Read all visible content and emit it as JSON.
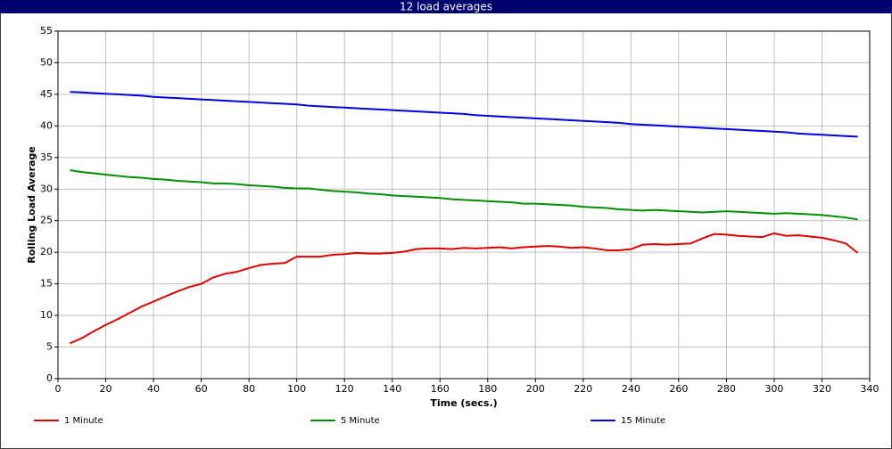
{
  "chart_data": {
    "type": "line",
    "title": "12 load averages",
    "x_label": "Time (secs.)",
    "y_label": "Rolling Load Average",
    "x": [
      5,
      10,
      15,
      20,
      25,
      30,
      35,
      40,
      45,
      50,
      55,
      60,
      65,
      70,
      75,
      80,
      85,
      90,
      95,
      100,
      105,
      110,
      115,
      120,
      125,
      130,
      135,
      140,
      145,
      150,
      155,
      160,
      165,
      170,
      175,
      180,
      185,
      190,
      195,
      200,
      205,
      210,
      215,
      220,
      225,
      230,
      235,
      240,
      245,
      250,
      255,
      260,
      265,
      270,
      275,
      280,
      285,
      290,
      295,
      300,
      305,
      310,
      315,
      320,
      325,
      330,
      335
    ],
    "series": [
      {
        "name": "1 Minute",
        "color": "#e00000",
        "values": [
          5.6,
          6.4,
          7.5,
          8.5,
          9.4,
          10.4,
          11.4,
          12.2,
          13.0,
          13.8,
          14.5,
          15.0,
          16.0,
          16.6,
          16.9,
          17.5,
          18.0,
          18.2,
          18.3,
          19.3,
          19.3,
          19.3,
          19.6,
          19.7,
          19.9,
          19.8,
          19.8,
          19.9,
          20.1,
          20.5,
          20.6,
          20.6,
          20.5,
          20.7,
          20.6,
          20.7,
          20.8,
          20.6,
          20.8,
          20.9,
          21.0,
          20.9,
          20.7,
          20.8,
          20.6,
          20.3,
          20.3,
          20.5,
          21.2,
          21.3,
          21.2,
          21.3,
          21.4,
          22.2,
          22.9,
          22.8,
          22.6,
          22.5,
          22.4,
          23.0,
          22.6,
          22.7,
          22.5,
          22.3,
          21.9,
          21.4,
          19.9
        ]
      },
      {
        "name": "5 Minute",
        "color": "#009000",
        "values": [
          33.0,
          32.7,
          32.5,
          32.3,
          32.1,
          31.9,
          31.8,
          31.6,
          31.5,
          31.3,
          31.2,
          31.1,
          30.9,
          30.9,
          30.8,
          30.6,
          30.5,
          30.4,
          30.2,
          30.1,
          30.1,
          29.9,
          29.7,
          29.6,
          29.5,
          29.3,
          29.2,
          29.0,
          28.9,
          28.8,
          28.7,
          28.6,
          28.4,
          28.3,
          28.2,
          28.1,
          28.0,
          27.9,
          27.7,
          27.7,
          27.6,
          27.5,
          27.4,
          27.2,
          27.1,
          27.0,
          26.8,
          26.7,
          26.6,
          26.7,
          26.6,
          26.5,
          26.4,
          26.3,
          26.4,
          26.5,
          26.4,
          26.3,
          26.2,
          26.1,
          26.2,
          26.1,
          26.0,
          25.9,
          25.7,
          25.5,
          25.2
        ]
      },
      {
        "name": "15 Minute",
        "color": "#0000e0",
        "values": [
          45.4,
          45.3,
          45.2,
          45.1,
          45.0,
          44.9,
          44.8,
          44.6,
          44.5,
          44.4,
          44.3,
          44.2,
          44.1,
          44.0,
          43.9,
          43.8,
          43.7,
          43.6,
          43.5,
          43.4,
          43.2,
          43.1,
          43.0,
          42.9,
          42.8,
          42.7,
          42.6,
          42.5,
          42.4,
          42.3,
          42.2,
          42.1,
          42.0,
          41.9,
          41.7,
          41.6,
          41.5,
          41.4,
          41.3,
          41.2,
          41.1,
          41.0,
          40.9,
          40.8,
          40.7,
          40.6,
          40.5,
          40.3,
          40.2,
          40.1,
          40.0,
          39.9,
          39.8,
          39.7,
          39.6,
          39.5,
          39.4,
          39.3,
          39.2,
          39.1,
          39.0,
          38.8,
          38.7,
          38.6,
          38.5,
          38.4,
          38.3
        ]
      }
    ],
    "xlim": [
      0,
      340
    ],
    "xticks": [
      0,
      20,
      40,
      60,
      80,
      100,
      120,
      140,
      160,
      180,
      200,
      220,
      240,
      260,
      280,
      300,
      320,
      340
    ],
    "ylim": [
      0,
      55
    ],
    "yticks": [
      0,
      5,
      10,
      15,
      20,
      25,
      30,
      35,
      40,
      45,
      50,
      55
    ],
    "grid": true,
    "legend": "bottom"
  }
}
